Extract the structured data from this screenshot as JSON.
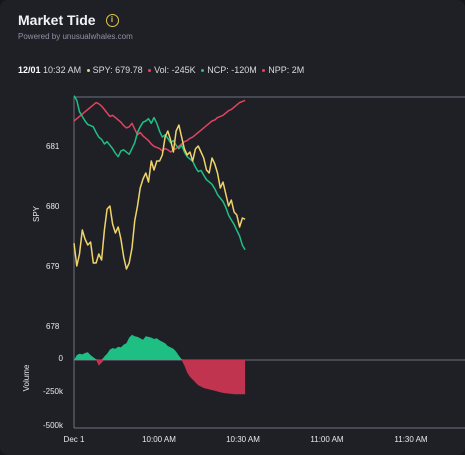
{
  "header": {
    "title": "Market Tide",
    "info_icon": "info-icon",
    "subtitle": "Powered by unusualwhales.com"
  },
  "legend": {
    "date": "12/01",
    "time": "10:32 AM",
    "spy": "SPY: 679.78",
    "vol": "Vol: -245K",
    "ncp": "NCP: -120M",
    "npp": "NPP: 2M"
  },
  "colors": {
    "spy": "#f0d36a",
    "ncp": "#1fbf84",
    "npp": "#e0445e",
    "vol_pos": "#1fbf84",
    "vol_neg": "#c0344f",
    "background": "#1f2026"
  },
  "chart_data": [
    {
      "type": "line",
      "name": "price",
      "ylabel": "SPY",
      "y_ticks": [
        "681",
        "680",
        "679",
        "678"
      ],
      "x_ticks": [
        "Dec 1",
        "10:00 AM",
        "10:30 AM",
        "11:00 AM",
        "11:30 AM"
      ],
      "series": [
        {
          "name": "SPY",
          "t": [
            0,
            1,
            2,
            3,
            4,
            5,
            6,
            7,
            8,
            9,
            10,
            11,
            12,
            13,
            14,
            15,
            16,
            17,
            18,
            19,
            20,
            21,
            22,
            23,
            24,
            25,
            26,
            27,
            28,
            29,
            30,
            31,
            32,
            33,
            34,
            35,
            36,
            37,
            38,
            39,
            40,
            41,
            42,
            43,
            44,
            45,
            46,
            47,
            48,
            49,
            50,
            51,
            52,
            53,
            54,
            55,
            56,
            57,
            58,
            59,
            60,
            61,
            62
          ],
          "values": [
            679.38,
            679.0,
            679.2,
            679.6,
            679.45,
            679.35,
            679.4,
            679.05,
            679.05,
            679.2,
            679.1,
            679.6,
            679.95,
            680.0,
            679.7,
            679.55,
            679.65,
            679.45,
            679.15,
            678.95,
            679.05,
            679.3,
            679.75,
            680.0,
            680.3,
            680.45,
            680.55,
            680.4,
            680.75,
            680.6,
            680.75,
            680.75,
            680.85,
            681.15,
            681.25,
            681.1,
            680.9,
            681.25,
            681.35,
            681.15,
            680.95,
            680.85,
            680.9,
            680.75,
            680.95,
            681.0,
            680.9,
            680.8,
            680.6,
            680.55,
            680.8,
            680.7,
            680.55,
            680.3,
            680.4,
            680.2,
            680.0,
            680.1,
            679.9,
            679.85,
            679.65,
            679.8,
            679.78
          ]
        }
      ]
    },
    {
      "type": "line",
      "name": "premium",
      "series": [
        {
          "name": "NCP",
          "t": [
            0,
            1,
            2,
            3,
            4,
            5,
            6,
            7,
            8,
            9,
            10,
            11,
            12,
            13,
            14,
            15,
            16,
            17,
            18,
            19,
            20,
            21,
            22,
            23,
            24,
            25,
            26,
            27,
            28,
            29,
            30,
            31,
            32,
            33,
            34,
            35,
            36,
            37,
            38,
            39,
            40,
            41,
            42,
            43,
            44,
            45,
            46,
            47,
            48,
            49,
            50,
            51,
            52,
            53,
            54,
            55,
            56,
            57,
            58,
            59,
            60,
            61,
            62
          ],
          "values": [
            82,
            78,
            68,
            64,
            60,
            57,
            56,
            55,
            50,
            46,
            44,
            40,
            42,
            39,
            36,
            32,
            29,
            34,
            35,
            33,
            31,
            36,
            41,
            50,
            55,
            59,
            60,
            62,
            58,
            63,
            58,
            51,
            46,
            48,
            45,
            41,
            43,
            39,
            36,
            39,
            33,
            29,
            27,
            25,
            20,
            16,
            17,
            13,
            9,
            7,
            5,
            1,
            -4,
            -7,
            -10,
            -15,
            -22,
            -26,
            -30,
            -35,
            -40,
            -48,
            -52
          ]
        },
        {
          "name": "NPP",
          "t": [
            0,
            1,
            2,
            3,
            4,
            5,
            6,
            7,
            8,
            9,
            10,
            11,
            12,
            13,
            14,
            15,
            16,
            17,
            18,
            19,
            20,
            21,
            22,
            23,
            24,
            25,
            26,
            27,
            28,
            29,
            30,
            31,
            32,
            33,
            34,
            35,
            36,
            37,
            38,
            39,
            40,
            41,
            42,
            43,
            44,
            45,
            46,
            47,
            48,
            49,
            50,
            51,
            52,
            53,
            54,
            55,
            56,
            57,
            58,
            59,
            60,
            61,
            62
          ],
          "values": [
            60,
            62,
            64,
            66,
            68,
            70,
            72,
            74,
            76,
            75,
            73,
            70,
            67,
            64,
            65,
            63,
            61,
            59,
            56,
            54,
            55,
            58,
            53,
            48,
            50,
            47,
            45,
            43,
            40,
            38,
            37,
            36,
            34,
            36,
            35,
            33,
            35,
            36,
            38,
            40,
            42,
            43,
            45,
            46,
            48,
            50,
            52,
            54,
            56,
            58,
            60,
            61,
            63,
            64,
            65,
            67,
            69,
            70,
            72,
            74,
            76,
            77,
            78
          ]
        }
      ]
    },
    {
      "type": "area",
      "name": "volume",
      "ylabel": "Volume",
      "y_ticks": [
        "0",
        "-250k",
        "-500k"
      ],
      "series": [
        {
          "name": "Volume",
          "t": [
            0,
            1,
            2,
            3,
            4,
            5,
            6,
            7,
            8,
            9,
            10,
            11,
            12,
            13,
            14,
            15,
            16,
            17,
            18,
            19,
            20,
            21,
            22,
            23,
            24,
            25,
            26,
            27,
            28,
            29,
            30,
            31,
            32,
            33,
            34,
            35,
            36,
            37,
            38,
            39,
            40,
            41,
            42,
            43,
            44,
            45,
            46,
            47,
            48,
            49,
            50,
            51,
            52,
            53,
            54,
            55,
            56,
            57,
            58,
            59,
            60,
            61,
            62
          ],
          "values": [
            0,
            35000,
            45000,
            40000,
            50000,
            55000,
            35000,
            20000,
            5000,
            -40000,
            -20000,
            25000,
            45000,
            75000,
            85000,
            80000,
            95000,
            90000,
            110000,
            120000,
            160000,
            180000,
            170000,
            165000,
            155000,
            145000,
            170000,
            165000,
            160000,
            150000,
            155000,
            140000,
            130000,
            120000,
            100000,
            90000,
            80000,
            60000,
            30000,
            5000,
            -40000,
            -90000,
            -120000,
            -140000,
            -160000,
            -180000,
            -190000,
            -200000,
            -205000,
            -210000,
            -215000,
            -220000,
            -225000,
            -230000,
            -235000,
            -238000,
            -240000,
            -242000,
            -244000,
            -245000,
            -245000,
            -245000,
            -245000
          ]
        }
      ]
    }
  ]
}
